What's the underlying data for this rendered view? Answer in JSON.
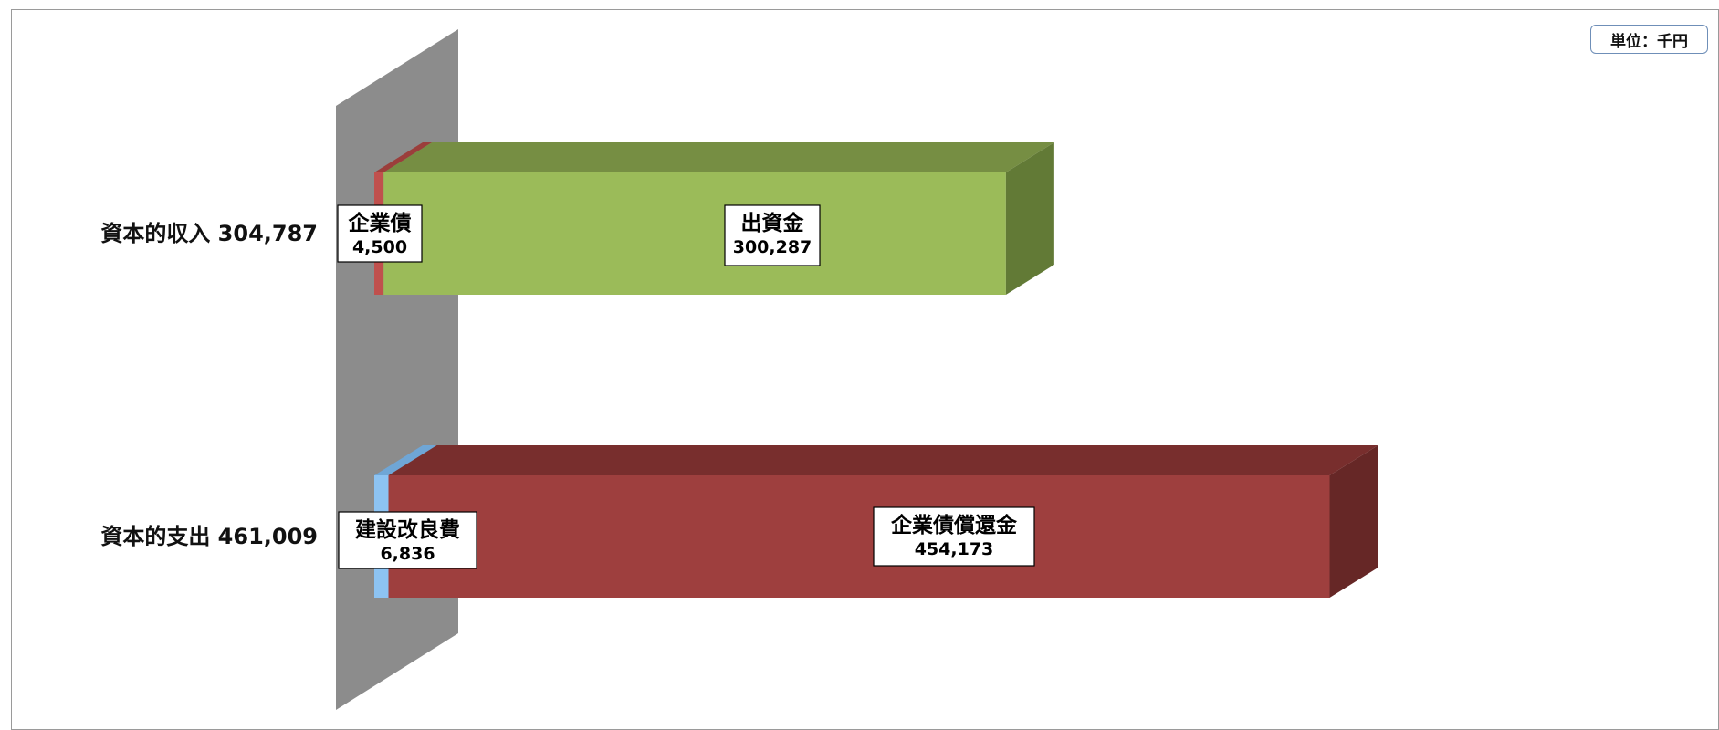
{
  "unit_label": "単位：千円",
  "chart_data": {
    "type": "bar",
    "orientation": "horizontal",
    "stacked": true,
    "three_d": true,
    "categories": [
      {
        "name": "資本的収入",
        "total": "304,787",
        "segments": [
          {
            "name": "企業債",
            "value": 4500,
            "value_label": "4,500",
            "color": "#c0504d",
            "top_color": "#9b3e3b",
            "side_color": "#8c3836"
          },
          {
            "name": "出資金",
            "value": 300287,
            "value_label": "300,287",
            "color": "#9bbb59",
            "top_color": "#768e43",
            "side_color": "#627a36"
          }
        ]
      },
      {
        "name": "資本的支出",
        "total": "461,009",
        "segments": [
          {
            "name": "建設改良費",
            "value": 6836,
            "value_label": "6,836",
            "color": "#8dc3f2",
            "top_color": "#6fa6d6",
            "side_color": "#5f93c2"
          },
          {
            "name": "企業債償還金",
            "value": 454173,
            "value_label": "454,173",
            "color": "#9e3f3e",
            "top_color": "#782e2d",
            "side_color": "#662726"
          }
        ]
      }
    ],
    "colors": {
      "back_wall": "#8c8c8c"
    }
  }
}
